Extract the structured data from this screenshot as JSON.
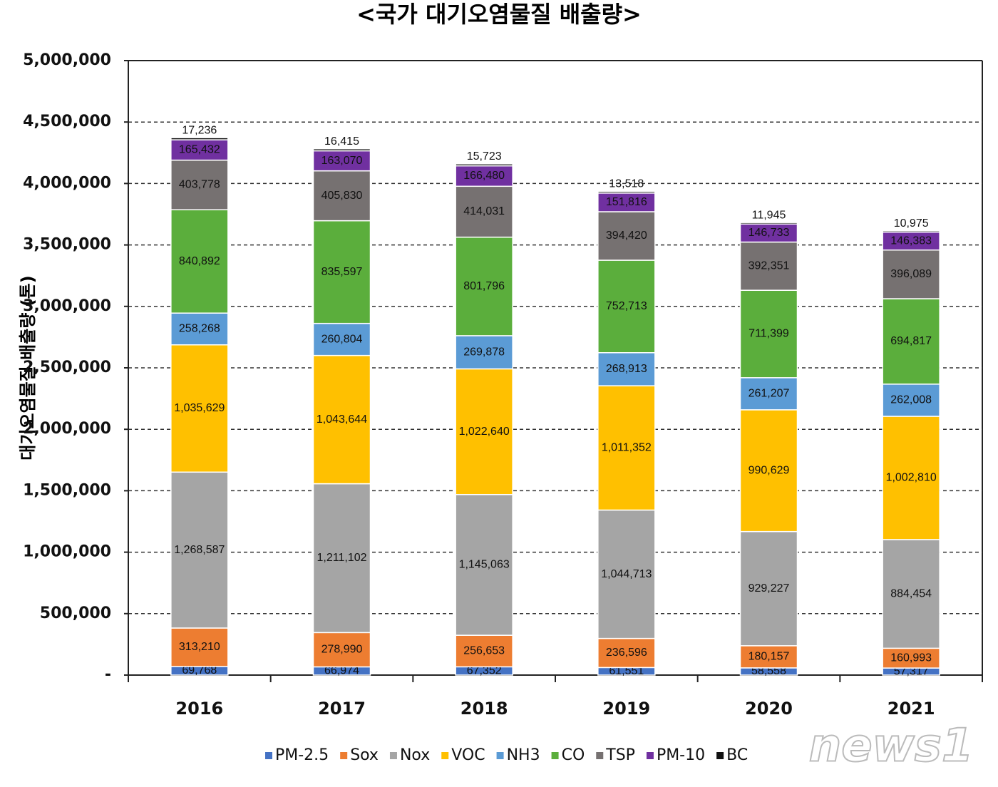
{
  "chart_data": {
    "type": "stacked-bar",
    "title": "<국가 대기오염물질 배출량>",
    "y_label": "대기오염물질 배출량 (톤)",
    "watermark": "news1",
    "categories": [
      "2016",
      "2017",
      "2018",
      "2019",
      "2020",
      "2021"
    ],
    "ylim": [
      0,
      5000000
    ],
    "yticks": [
      {
        "value": 0,
        "label": "-"
      },
      {
        "value": 500000,
        "label": "500,000"
      },
      {
        "value": 1000000,
        "label": "1,000,000"
      },
      {
        "value": 1500000,
        "label": "1,500,000"
      },
      {
        "value": 2000000,
        "label": "2,000,000"
      },
      {
        "value": 2500000,
        "label": "2,500,000"
      },
      {
        "value": 3000000,
        "label": "3,000,000"
      },
      {
        "value": 3500000,
        "label": "3,500,000"
      },
      {
        "value": 4000000,
        "label": "4,000,000"
      },
      {
        "value": 4500000,
        "label": "4,500,000"
      },
      {
        "value": 5000000,
        "label": "5,000,000"
      }
    ],
    "grid": true,
    "legend": "bottom",
    "series": [
      {
        "name": "PM-2.5",
        "color": "#4472c4",
        "values": [
          69768,
          66974,
          67352,
          61551,
          58558,
          57317
        ],
        "value_labels": [
          "69,768",
          "66,974",
          "67,352",
          "61,551",
          "58,558",
          "57,317"
        ]
      },
      {
        "name": "Sox",
        "color": "#ed7d31",
        "values": [
          313210,
          278990,
          256653,
          236596,
          180157,
          160993
        ],
        "value_labels": [
          "313,210",
          "278,990",
          "256,653",
          "236,596",
          "180,157",
          "160,993"
        ]
      },
      {
        "name": "Nox",
        "color": "#a5a5a5",
        "values": [
          1268587,
          1211102,
          1145063,
          1044713,
          929227,
          884454
        ],
        "value_labels": [
          "1,268,587",
          "1,211,102",
          "1,145,063",
          "1,044,713",
          "929,227",
          "884,454"
        ]
      },
      {
        "name": "VOC",
        "color": "#ffc000",
        "values": [
          1035629,
          1043644,
          1022640,
          1011352,
          990629,
          1002810
        ],
        "value_labels": [
          "1,035,629",
          "1,043,644",
          "1,022,640",
          "1,011,352",
          "990,629",
          "1,002,810"
        ]
      },
      {
        "name": "NH3",
        "color": "#5b9bd5",
        "values": [
          258268,
          260804,
          269878,
          268913,
          261207,
          262008
        ],
        "value_labels": [
          "258,268",
          "260,804",
          "269,878",
          "268,913",
          "261,207",
          "262,008"
        ]
      },
      {
        "name": "CO",
        "color": "#5bae3c",
        "values": [
          840892,
          835597,
          801796,
          752713,
          711399,
          694817
        ],
        "value_labels": [
          "840,892",
          "835,597",
          "801,796",
          "752,713",
          "711,399",
          "694,817"
        ]
      },
      {
        "name": "TSP",
        "color": "#767171",
        "values": [
          403778,
          405830,
          414031,
          394420,
          392351,
          396089
        ],
        "value_labels": [
          "403,778",
          "405,830",
          "414,031",
          "394,420",
          "392,351",
          "396,089"
        ]
      },
      {
        "name": "PM-10",
        "color": "#7030a0",
        "values": [
          165432,
          163070,
          166480,
          151816,
          146733,
          146383
        ],
        "value_labels": [
          "165,432",
          "163,070",
          "166,480",
          "151,816",
          "146,733",
          "146,383"
        ]
      },
      {
        "name": "BC",
        "color": "#111111",
        "values": [
          17236,
          16415,
          15723,
          13518,
          11945,
          10975
        ],
        "value_labels": [
          "17,236",
          "16,415",
          "15,723",
          "13,518",
          "11,945",
          "10,975"
        ]
      }
    ]
  }
}
